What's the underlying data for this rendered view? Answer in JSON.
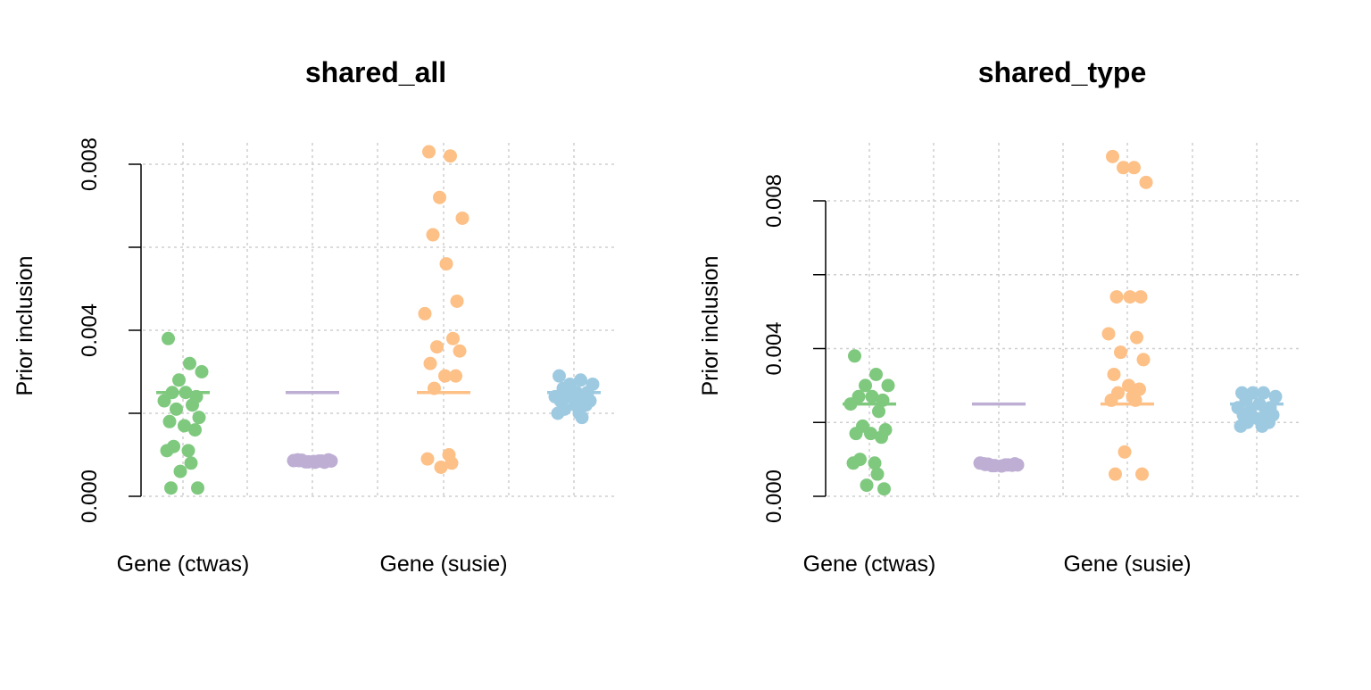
{
  "chart_data": [
    {
      "type": "scatter",
      "title": "shared_all",
      "ylabel": "Prior inclusion",
      "ylim": [
        0,
        0.0082
      ],
      "yticks": [
        "0.000",
        "0.004",
        "0.008"
      ],
      "yminor": [
        0.002,
        0.006
      ],
      "x_labels_shown": [
        {
          "label": "Gene (ctwas)",
          "group": 0
        },
        {
          "label": "Gene (susie)",
          "group": 2
        }
      ],
      "grid": true,
      "groups": [
        {
          "color": "#7fc97f",
          "median": 0.0025,
          "points": [
            0.0038,
            0.0032,
            0.0028,
            0.003,
            0.0025,
            0.0025,
            0.0024,
            0.0023,
            0.0022,
            0.0021,
            0.0019,
            0.0018,
            0.0017,
            0.0016,
            0.0012,
            0.0011,
            0.0011,
            0.0008,
            0.0006,
            0.0002,
            0.0002
          ]
        },
        {
          "color": "#beaed4",
          "median": 0.0025,
          "points": [
            0.00088,
            0.00085,
            0.00083,
            0.00085,
            0.00087,
            0.00082,
            0.00084,
            0.00086,
            0.00085,
            0.00083,
            0.00088,
            0.00086,
            0.00084,
            0.00082
          ]
        },
        {
          "color": "#fdc086",
          "median": 0.0025,
          "points": [
            0.0083,
            0.0082,
            0.0072,
            0.0067,
            0.0063,
            0.0056,
            0.0047,
            0.0044,
            0.0038,
            0.0036,
            0.0035,
            0.0032,
            0.0029,
            0.0029,
            0.0026,
            0.001,
            0.0009,
            0.0008,
            0.0007
          ]
        },
        {
          "color": "#9ecae1",
          "median": 0.0025,
          "points": [
            0.0029,
            0.0028,
            0.0027,
            0.0027,
            0.0026,
            0.0025,
            0.0025,
            0.0024,
            0.0024,
            0.0024,
            0.0023,
            0.0023,
            0.0022,
            0.0022,
            0.0021,
            0.002,
            0.002,
            0.0019
          ]
        }
      ]
    },
    {
      "type": "scatter",
      "title": "shared_type",
      "ylabel": "Prior inclusion",
      "ylim": [
        0,
        0.0091
      ],
      "yticks": [
        "0.000",
        "0.004",
        "0.008"
      ],
      "yminor": [
        0.002,
        0.006
      ],
      "x_labels_shown": [
        {
          "label": "Gene (ctwas)",
          "group": 0
        },
        {
          "label": "Gene (susie)",
          "group": 2
        }
      ],
      "grid": true,
      "groups": [
        {
          "color": "#7fc97f",
          "median": 0.0025,
          "points": [
            0.0038,
            0.0033,
            0.003,
            0.003,
            0.0027,
            0.0027,
            0.0026,
            0.0025,
            0.0023,
            0.0019,
            0.0018,
            0.0017,
            0.0017,
            0.0016,
            0.001,
            0.0009,
            0.0009,
            0.0006,
            0.0003,
            0.0002
          ]
        },
        {
          "color": "#beaed4",
          "median": 0.0025,
          "points": [
            0.00088,
            0.00085,
            0.00083,
            0.00085,
            0.00087,
            0.00082,
            0.00084,
            0.0009,
            0.00085,
            0.00083,
            0.00088,
            0.00086
          ]
        },
        {
          "color": "#fdc086",
          "median": 0.0025,
          "points": [
            0.0092,
            0.0089,
            0.0089,
            0.0085,
            0.0054,
            0.0054,
            0.0054,
            0.0044,
            0.0043,
            0.0039,
            0.0037,
            0.0033,
            0.003,
            0.0029,
            0.0028,
            0.0027,
            0.0026,
            0.0026,
            0.0012,
            0.0006,
            0.0006
          ]
        },
        {
          "color": "#9ecae1",
          "median": 0.0025,
          "points": [
            0.0028,
            0.0028,
            0.0028,
            0.0027,
            0.0026,
            0.0025,
            0.0024,
            0.0024,
            0.0023,
            0.0023,
            0.0022,
            0.0022,
            0.0021,
            0.002,
            0.002,
            0.0019,
            0.0019
          ]
        }
      ]
    }
  ]
}
